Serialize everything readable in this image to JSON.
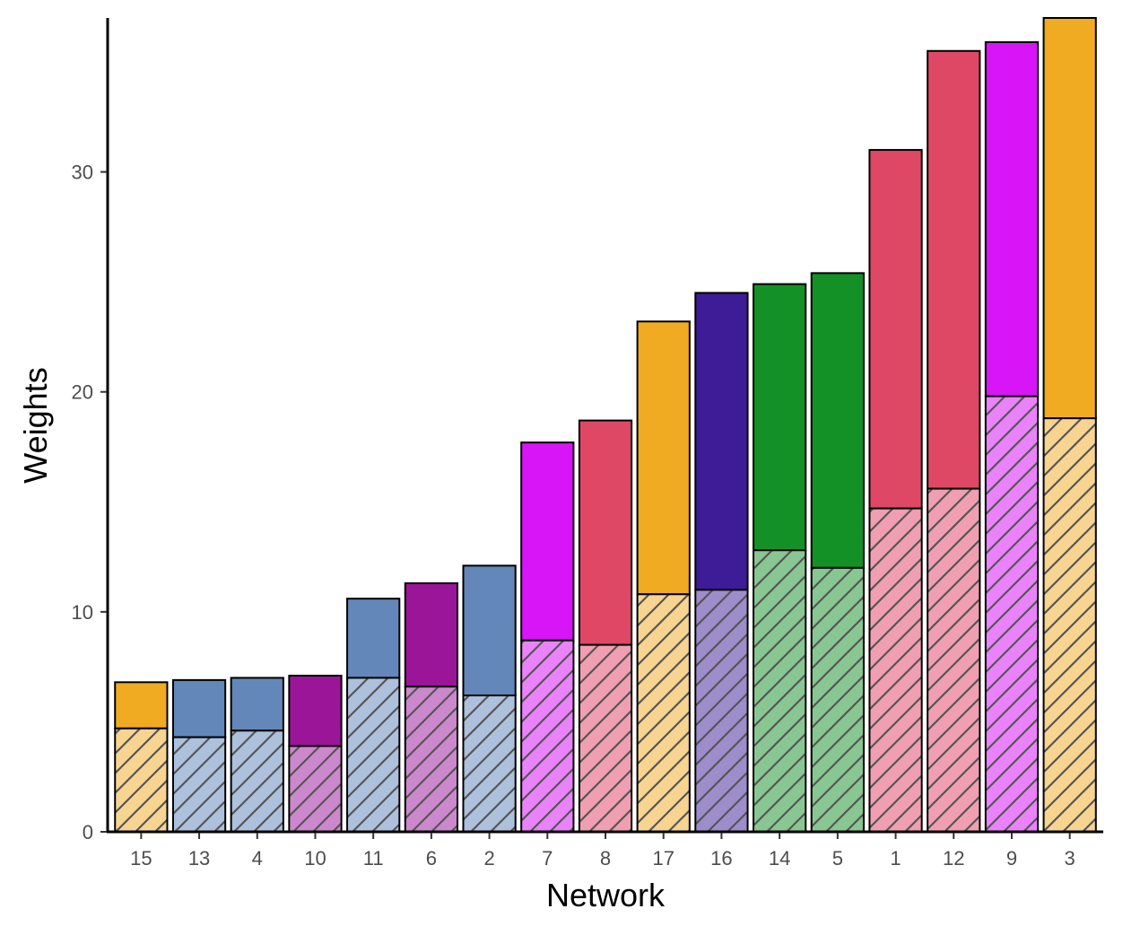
{
  "chart_data": {
    "type": "bar",
    "stacked": true,
    "title": "",
    "xlabel": "Network",
    "ylabel": "Weights",
    "ylim": [
      0,
      37
    ],
    "yticks": [
      0,
      10,
      20,
      30
    ],
    "grid": false,
    "legend": "none",
    "categories": [
      "15",
      "13",
      "4",
      "10",
      "11",
      "6",
      "2",
      "7",
      "8",
      "17",
      "16",
      "14",
      "5",
      "1",
      "12",
      "9",
      "3"
    ],
    "series": [
      {
        "pattern": "hatched",
        "values": [
          4.7,
          4.3,
          4.6,
          3.9,
          7.0,
          6.6,
          6.2,
          8.7,
          8.5,
          10.8,
          11.0,
          12.8,
          12.0,
          14.7,
          15.6,
          19.8,
          18.8
        ]
      },
      {
        "pattern": "solid",
        "values": [
          2.1,
          2.6,
          2.4,
          3.2,
          3.6,
          4.7,
          5.9,
          9.0,
          10.2,
          12.4,
          13.5,
          12.1,
          13.4,
          16.3,
          19.9,
          16.1,
          18.2
        ]
      }
    ],
    "bar_colors": [
      "#F0AB23",
      "#6387B8",
      "#6387B8",
      "#9B1599",
      "#6387B8",
      "#9B1599",
      "#6387B8",
      "#D715F7",
      "#DF4865",
      "#F0AB23",
      "#3E1C97",
      "#139127",
      "#139127",
      "#DF4865",
      "#DF4865",
      "#D715F7",
      "#F0AB23"
    ],
    "bar_light_colors": [
      "#F8D491",
      "#ADC0DC",
      "#ADC0DC",
      "#CC88CC",
      "#ADC0DC",
      "#CC88CC",
      "#ADC0DC",
      "#EA83FB",
      "#EF9FB1",
      "#F8D491",
      "#9D8DCB",
      "#88C791",
      "#88C791",
      "#EF9FB1",
      "#EF9FB1",
      "#EA83FB",
      "#F8D491"
    ]
  }
}
